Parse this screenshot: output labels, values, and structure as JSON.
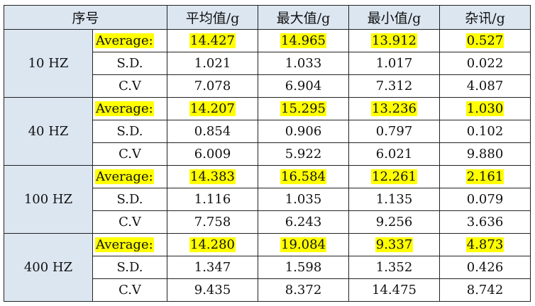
{
  "header": {
    "col_id": "序号",
    "col_avg": "平均值/g",
    "col_max": "最大值/g",
    "col_min": "最小值/g",
    "col_noise": "杂讯/g"
  },
  "highlight_color": "#ffff00",
  "header_bg_color": "#dce6f1",
  "groups": [
    {
      "freq": "10 HZ",
      "rows": [
        {
          "label": "Average:",
          "v": [
            "14.427",
            "14.965",
            "13.912",
            "0.527"
          ]
        },
        {
          "label": "S.D.",
          "v": [
            "1.021",
            "1.033",
            "1.017",
            "0.022"
          ]
        },
        {
          "label": "C.V",
          "v": [
            "7.078",
            "6.904",
            "7.312",
            "4.087"
          ]
        }
      ]
    },
    {
      "freq": "40 HZ",
      "rows": [
        {
          "label": "Average:",
          "v": [
            "14.207",
            "15.295",
            "13.236",
            "1.030"
          ]
        },
        {
          "label": "S.D.",
          "v": [
            "0.854",
            "0.906",
            "0.797",
            "0.102"
          ]
        },
        {
          "label": "C.V",
          "v": [
            "6.009",
            "5.922",
            "6.021",
            "9.880"
          ]
        }
      ]
    },
    {
      "freq": "100 HZ",
      "rows": [
        {
          "label": "Average:",
          "v": [
            "14.383",
            "16.584",
            "12.261",
            "2.161"
          ]
        },
        {
          "label": "S.D.",
          "v": [
            "1.116",
            "1.035",
            "1.135",
            "0.079"
          ]
        },
        {
          "label": "C.V",
          "v": [
            "7.758",
            "6.243",
            "9.256",
            "3.636"
          ]
        }
      ]
    },
    {
      "freq": "400 HZ",
      "rows": [
        {
          "label": "Average:",
          "v": [
            "14.280",
            "19.084",
            "9.337",
            "4.873"
          ]
        },
        {
          "label": "S.D.",
          "v": [
            "1.347",
            "1.598",
            "1.352",
            "0.426"
          ]
        },
        {
          "label": "C.V",
          "v": [
            "9.435",
            "8.372",
            "14.475",
            "8.742"
          ]
        }
      ]
    }
  ]
}
